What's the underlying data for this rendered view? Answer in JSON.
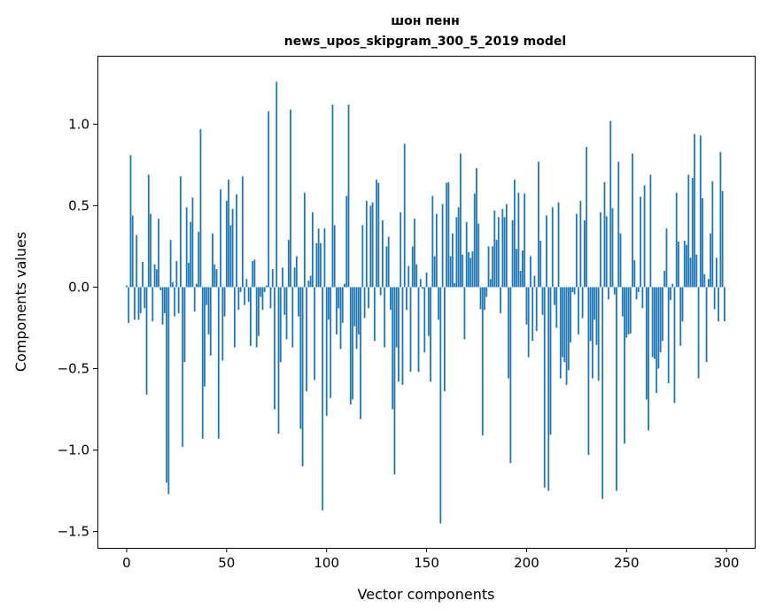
{
  "chart_data": {
    "type": "bar",
    "title": [
      "шон пенн",
      "news_upos_skipgram_300_5_2019 model"
    ],
    "xlabel": "Vector components",
    "ylabel": "Components values",
    "xlim": [
      -14.6,
      314.1
    ],
    "ylim": [
      -1.6,
      1.42
    ],
    "xticks": [
      0,
      50,
      100,
      150,
      200,
      250,
      300
    ],
    "xtick_labels": [
      "0",
      "50",
      "100",
      "150",
      "200",
      "250",
      "300"
    ],
    "yticks": [
      -1.5,
      -1.0,
      -0.5,
      0.0,
      0.5,
      1.0
    ],
    "ytick_labels": [
      "−1.5",
      "−1.0",
      "−0.5",
      "0.0",
      "0.5",
      "1.0"
    ],
    "grid": false,
    "color": "#1f77b4",
    "values": [
      0.01,
      -0.22,
      0.81,
      0.44,
      -0.2,
      0.32,
      -0.2,
      -0.16,
      0.155,
      -0.13,
      -0.66,
      0.69,
      0.45,
      -0.21,
      0.14,
      0.11,
      0.42,
      -0.02,
      -0.23,
      -0.16,
      -1.2,
      -1.27,
      0.29,
      0.03,
      -0.18,
      0.16,
      -0.16,
      0.68,
      -0.98,
      -0.46,
      0.49,
      0.15,
      0.4,
      0.55,
      -0.15,
      0.02,
      0.34,
      0.97,
      -0.93,
      -0.61,
      -0.11,
      -0.29,
      -0.42,
      0.33,
      0.14,
      0.11,
      -0.93,
      0.6,
      -0.45,
      -0.18,
      0.53,
      0.66,
      0.38,
      0.48,
      -0.37,
      0.57,
      -0.14,
      -0.03,
      0.68,
      -0.11,
      0.05,
      -0.09,
      -0.36,
      0.16,
      0.17,
      -0.37,
      -0.3,
      -0.06,
      -0.14,
      -0.03,
      0.01,
      1.08,
      -0.13,
      0.11,
      -0.75,
      1.26,
      -0.9,
      -0.46,
      0.12,
      -0.17,
      -0.32,
      0.29,
      1.09,
      -0.37,
      0.12,
      0.19,
      -0.18,
      -0.87,
      -1.1,
      0.58,
      -0.64,
      0.04,
      0.07,
      0.46,
      -0.57,
      0.27,
      0.36,
      0.27,
      -1.37,
      0.36,
      -0.79,
      -0.2,
      -0.68,
      1.12,
      0.38,
      -0.29,
      -0.13,
      -0.38,
      -0.22,
      0.02,
      0.56,
      1.12,
      -0.72,
      -0.69,
      -0.24,
      -0.38,
      -0.29,
      -0.81,
      0.38,
      -0.19,
      0.53,
      -0.13,
      0.5,
      0.52,
      -0.33,
      0.66,
      0.64,
      -0.05,
      0.41,
      -0.37,
      0.25,
      0.31,
      -0.14,
      -0.75,
      -1.15,
      -0.37,
      -0.58,
      0.46,
      -0.6,
      0.88,
      -0.14,
      0.13,
      -0.52,
      0.25,
      0.42,
      0.14,
      -0.52,
      0.05,
      -0.01,
      -0.4,
      0.09,
      -0.3,
      -0.58,
      0.56,
      0.19,
      0.45,
      -0.2,
      -1.45,
      0.51,
      -0.64,
      0.64,
      0.645,
      0.19,
      0.33,
      0.025,
      0.43,
      0.49,
      0.82,
      0.2,
      -0.32,
      0.4,
      0.215,
      0.18,
      0.22,
      0.575,
      0.73,
      0.39,
      -0.135,
      -0.91,
      -0.14,
      -0.06,
      0.25,
      0.05,
      0.25,
      0.47,
      0.29,
      0.43,
      -0.16,
      0.48,
      0.43,
      0.51,
      -0.56,
      -1.08,
      0.41,
      0.66,
      0.235,
      0.58,
      0.1,
      0.225,
      0.575,
      -0.23,
      -0.43,
      0.19,
      -0.33,
      0.07,
      -0.27,
      0.77,
      0.285,
      -0.17,
      -1.23,
      0.44,
      -1.25,
      -0.905,
      0.49,
      -0.11,
      -0.25,
      0.52,
      -0.56,
      -0.43,
      -0.46,
      -0.6,
      -0.51,
      -0.34,
      -0.03,
      -0.045,
      0.45,
      -0.29,
      0.53,
      -0.19,
      0.41,
      0.86,
      -1.03,
      -0.33,
      -0.56,
      -0.2,
      -0.355,
      -0.575,
      0.46,
      -1.3,
      0.645,
      0.435,
      -0.075,
      1.02,
      0.485,
      -0.045,
      -1.25,
      0.77,
      0.33,
      -0.18,
      -0.96,
      -0.31,
      -0.29,
      -0.285,
      0.82,
      0.165,
      -0.075,
      -0.03,
      0.555,
      -0.13,
      0.625,
      -0.69,
      -0.88,
      0.69,
      -0.43,
      -0.44,
      -0.65,
      -0.5,
      -0.4,
      -0.33,
      0.1,
      0.36,
      -0.59,
      -0.08,
      0.02,
      -0.71,
      0.58,
      0.28,
      -0.36,
      -0.21,
      0.285,
      0.26,
      0.69,
      0.18,
      0.67,
      0.94,
      0.2,
      -0.56,
      0.93,
      0.545,
      0.08,
      -0.46,
      0.05,
      0.33,
      0.65,
      -0.135,
      0.18,
      -0.21,
      0.83,
      0.59,
      -0.21
    ]
  }
}
